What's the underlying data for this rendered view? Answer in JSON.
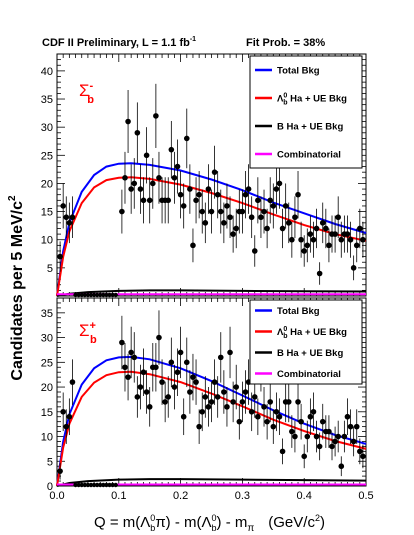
{
  "figure": {
    "header": "CDF II Preliminary, L = 1.1 fb",
    "header_sup": "-1",
    "fit_prob": "Fit Prob. = 38%",
    "ylabel_main": "Candidates per 5 MeV/c",
    "ylabel_sup": "2",
    "xlabel_prefix": "Q = m(Λ",
    "xlabel_mid1": "π) - m(Λ",
    "xlabel_mid2": ") - m",
    "xlabel_pi": "π",
    "xlabel_units": "(GeV/c",
    "xlabel_units_sup": "2",
    "xlabel_close": ")",
    "colors": {
      "total": "#0000ff",
      "signal": "#ff0000",
      "bha": "#000000",
      "comb": "#ff00ff",
      "label": "#ff0000"
    }
  },
  "chart_data": [
    {
      "type": "scatter",
      "panel": "upper",
      "particle": "Σ",
      "particle_sup": "-",
      "particle_sub": "b",
      "x_ticks": [
        "0.0",
        "0.1",
        "0.2",
        "0.3",
        "0.4",
        "0.5"
      ],
      "y_ticks": [
        "5",
        "10",
        "15",
        "20",
        "25",
        "30",
        "35",
        "40"
      ],
      "xlim": [
        0,
        0.5
      ],
      "ylim": [
        0,
        43
      ],
      "legend": [
        {
          "label": "Total Bkg",
          "color": "#0000ff"
        },
        {
          "label": "Λ",
          "sup": "0",
          "sub": "b",
          "suffix": " Ha + UE Bkg",
          "color": "#ff0000"
        },
        {
          "label": "B Ha + UE Bkg",
          "color": "#000000"
        },
        {
          "label": "Combinatorial",
          "color": "#ff00ff"
        }
      ],
      "series": [
        {
          "role": "total",
          "x": [
            0.0,
            0.01,
            0.02,
            0.04,
            0.06,
            0.08,
            0.1,
            0.12,
            0.15,
            0.2,
            0.25,
            0.3,
            0.35,
            0.4,
            0.45,
            0.5
          ],
          "y": [
            0,
            8,
            13,
            18.5,
            21.5,
            23,
            23.5,
            23.6,
            23.3,
            22.3,
            20.7,
            18.8,
            16.6,
            14.7,
            12.8,
            11.2
          ]
        },
        {
          "role": "signal",
          "x": [
            0.0,
            0.01,
            0.02,
            0.04,
            0.06,
            0.08,
            0.1,
            0.12,
            0.15,
            0.2,
            0.25,
            0.3,
            0.35,
            0.4,
            0.45,
            0.5
          ],
          "y": [
            0,
            7,
            11.5,
            16.5,
            19.3,
            20.6,
            21,
            21.1,
            20.8,
            19.8,
            18.3,
            16.5,
            14.5,
            12.6,
            11,
            9.8
          ]
        },
        {
          "role": "bha",
          "x": [
            0.0,
            0.02,
            0.05,
            0.1,
            0.15,
            0.2,
            0.3,
            0.4,
            0.5
          ],
          "y": [
            0,
            0.4,
            0.7,
            0.9,
            1.0,
            1.0,
            0.9,
            0.85,
            0.8
          ]
        },
        {
          "role": "comb",
          "x": [
            0.0,
            0.1,
            0.2,
            0.3,
            0.4,
            0.5
          ],
          "y": [
            0.3,
            0.3,
            0.3,
            0.3,
            0.3,
            0.3
          ]
        }
      ],
      "points": {
        "x": [
          0.005,
          0.01,
          0.015,
          0.02,
          0.025,
          0.105,
          0.11,
          0.115,
          0.12,
          0.125,
          0.13,
          0.135,
          0.14,
          0.145,
          0.15,
          0.155,
          0.16,
          0.165,
          0.17,
          0.175,
          0.18,
          0.185,
          0.19,
          0.195,
          0.2,
          0.205,
          0.21,
          0.215,
          0.22,
          0.225,
          0.23,
          0.235,
          0.24,
          0.245,
          0.25,
          0.255,
          0.26,
          0.265,
          0.27,
          0.275,
          0.28,
          0.285,
          0.29,
          0.295,
          0.3,
          0.305,
          0.31,
          0.315,
          0.32,
          0.325,
          0.33,
          0.335,
          0.34,
          0.345,
          0.35,
          0.355,
          0.36,
          0.365,
          0.37,
          0.375,
          0.38,
          0.385,
          0.39,
          0.395,
          0.4,
          0.405,
          0.41,
          0.415,
          0.42,
          0.425,
          0.43,
          0.435,
          0.44,
          0.445,
          0.45,
          0.455,
          0.46,
          0.465,
          0.47,
          0.475,
          0.48,
          0.485,
          0.49,
          0.495
        ],
        "y": [
          7,
          16,
          14,
          13,
          14,
          15,
          21,
          31,
          19,
          20,
          29,
          19,
          17,
          25,
          17,
          20,
          32,
          21,
          17,
          17,
          17,
          26,
          21,
          23,
          18,
          16,
          28,
          19,
          9,
          17,
          18,
          15,
          13,
          19,
          15,
          22,
          18,
          15,
          13,
          16,
          14,
          11,
          12,
          15,
          15,
          18,
          19,
          14,
          8,
          17,
          14,
          15,
          12,
          17,
          16,
          19,
          20,
          12,
          16,
          13,
          10,
          14,
          18,
          10,
          8,
          9,
          11,
          10,
          12,
          4,
          13,
          12,
          9,
          11,
          11,
          14,
          10,
          11,
          11,
          10,
          5,
          9,
          12,
          10
        ],
        "err": [
          2.7,
          4,
          3.7,
          3.6,
          3.7,
          3.9,
          4.6,
          5.6,
          4.4,
          4.5,
          5.4,
          4.4,
          4.1,
          5,
          4.1,
          4.5,
          5.7,
          4.6,
          4.1,
          4.1,
          4.1,
          5.1,
          4.6,
          4.8,
          4.2,
          4,
          5.3,
          4.4,
          3,
          4.1,
          4.2,
          3.9,
          3.6,
          4.4,
          3.9,
          4.7,
          4.2,
          3.9,
          3.6,
          4,
          3.7,
          3.3,
          3.5,
          3.9,
          3.9,
          4.2,
          4.4,
          3.7,
          2.8,
          4.1,
          3.7,
          3.9,
          3.5,
          4.1,
          4,
          4.4,
          4.5,
          3.5,
          4,
          3.6,
          3.2,
          3.7,
          4.2,
          3.2,
          2.8,
          3,
          3.3,
          3.2,
          3.5,
          2,
          3.6,
          3.5,
          3,
          3.3,
          3.3,
          3.7,
          3.2,
          3.3,
          3.3,
          3.2,
          2.2,
          3,
          3.5,
          3.2
        ]
      }
    },
    {
      "type": "scatter",
      "panel": "lower",
      "particle": "Σ",
      "particle_sup": "+",
      "particle_sub": "b",
      "x_ticks": [
        "0.0",
        "0.1",
        "0.2",
        "0.3",
        "0.4",
        "0.5"
      ],
      "y_ticks": [
        "0",
        "5",
        "10",
        "15",
        "20",
        "25",
        "30",
        "35"
      ],
      "xlim": [
        0,
        0.5
      ],
      "ylim": [
        0,
        38
      ],
      "legend": [
        {
          "label": "Total Bkg",
          "color": "#0000ff"
        },
        {
          "label": "Λ",
          "sup": "0",
          "sub": "b",
          "suffix": " Ha + UE Bkg",
          "color": "#ff0000"
        },
        {
          "label": "B Ha + UE Bkg",
          "color": "#000000"
        },
        {
          "label": "Combinatorial",
          "color": "#ff00ff"
        }
      ],
      "series": [
        {
          "role": "total",
          "x": [
            0.0,
            0.01,
            0.02,
            0.04,
            0.06,
            0.08,
            0.1,
            0.12,
            0.15,
            0.2,
            0.25,
            0.3,
            0.35,
            0.4,
            0.45,
            0.5
          ],
          "y": [
            0,
            9,
            14.5,
            20.5,
            23.8,
            25.4,
            26,
            26.1,
            25.6,
            23.8,
            21.2,
            18.3,
            15.3,
            12.6,
            10.3,
            8.5
          ]
        },
        {
          "role": "signal",
          "x": [
            0.0,
            0.01,
            0.02,
            0.04,
            0.06,
            0.08,
            0.1,
            0.12,
            0.15,
            0.2,
            0.25,
            0.3,
            0.35,
            0.4,
            0.45,
            0.5
          ],
          "y": [
            0,
            7.8,
            12.6,
            18,
            20.9,
            22.4,
            23,
            23.1,
            22.6,
            21,
            18.7,
            16.1,
            13.4,
            11.1,
            9.1,
            7.5
          ]
        },
        {
          "role": "bha",
          "x": [
            0.0,
            0.02,
            0.05,
            0.1,
            0.15,
            0.2,
            0.3,
            0.4,
            0.5
          ],
          "y": [
            0,
            0.6,
            1.0,
            1.3,
            1.4,
            1.4,
            1.3,
            1.2,
            1.1
          ]
        },
        {
          "role": "comb",
          "x": [
            0.0,
            0.1,
            0.2,
            0.3,
            0.4,
            0.5
          ],
          "y": [
            0.3,
            0.3,
            0.3,
            0.3,
            0.3,
            0.3
          ]
        }
      ],
      "points": {
        "x": [
          0.005,
          0.01,
          0.015,
          0.02,
          0.025,
          0.105,
          0.11,
          0.115,
          0.12,
          0.125,
          0.13,
          0.135,
          0.14,
          0.145,
          0.15,
          0.155,
          0.16,
          0.165,
          0.17,
          0.175,
          0.18,
          0.185,
          0.19,
          0.195,
          0.2,
          0.205,
          0.21,
          0.215,
          0.22,
          0.225,
          0.23,
          0.235,
          0.24,
          0.245,
          0.25,
          0.255,
          0.26,
          0.265,
          0.27,
          0.275,
          0.28,
          0.285,
          0.29,
          0.295,
          0.3,
          0.305,
          0.31,
          0.315,
          0.32,
          0.325,
          0.33,
          0.335,
          0.34,
          0.345,
          0.35,
          0.355,
          0.36,
          0.365,
          0.37,
          0.375,
          0.38,
          0.385,
          0.39,
          0.395,
          0.4,
          0.405,
          0.41,
          0.415,
          0.42,
          0.425,
          0.43,
          0.435,
          0.44,
          0.445,
          0.45,
          0.455,
          0.46,
          0.465,
          0.47,
          0.475,
          0.48,
          0.485,
          0.49,
          0.495
        ],
        "y": [
          3,
          15,
          12,
          14,
          21,
          29,
          24,
          22,
          27,
          26,
          18,
          20,
          23,
          19,
          16,
          24,
          24,
          30,
          21,
          17,
          18,
          25,
          20,
          23,
          27,
          14,
          25,
          19,
          22,
          21,
          12,
          15,
          18,
          16,
          17,
          21,
          18,
          26,
          19,
          16,
          27,
          17,
          20,
          13,
          17,
          19,
          21,
          15,
          18,
          14,
          24,
          16,
          13,
          17,
          12,
          15,
          14,
          7,
          17,
          17,
          11,
          10,
          17,
          13,
          6,
          10,
          14,
          15,
          10,
          8,
          13,
          11,
          11,
          8,
          9,
          10,
          4,
          10,
          14,
          12,
          9,
          12,
          7,
          6
        ],
        "err": [
          1.7,
          3.9,
          3.5,
          3.7,
          4.6,
          5.4,
          4.9,
          4.7,
          5.2,
          5.1,
          4.2,
          4.5,
          4.8,
          4.4,
          4,
          4.9,
          4.9,
          5.5,
          4.6,
          4.1,
          4.2,
          5,
          4.5,
          4.8,
          5.2,
          3.7,
          5,
          4.4,
          4.7,
          4.6,
          3.5,
          3.9,
          4.2,
          4,
          4.1,
          4.6,
          4.2,
          5.1,
          4.4,
          4,
          5.2,
          4.1,
          4.5,
          3.6,
          4.1,
          4.4,
          4.6,
          3.9,
          4.2,
          3.7,
          4.9,
          4,
          3.6,
          4.1,
          3.5,
          3.9,
          3.7,
          2.6,
          4.1,
          4.1,
          3.3,
          3.2,
          4.1,
          3.6,
          2.4,
          3.2,
          3.7,
          3.9,
          3.2,
          2.8,
          3.6,
          3.3,
          3.3,
          2.8,
          3,
          3.2,
          2,
          3.2,
          3.7,
          3.5,
          3,
          3.5,
          2.6,
          2.4
        ]
      }
    }
  ]
}
